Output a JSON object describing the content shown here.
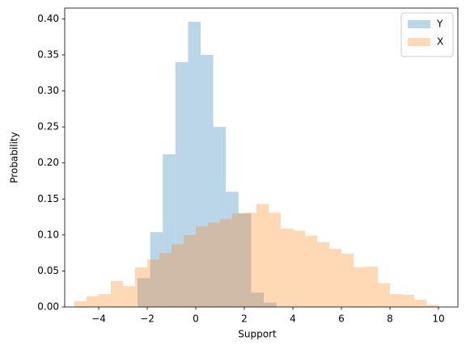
{
  "chart_data": {
    "type": "histogram",
    "x_label": "Support",
    "y_label": "Probability",
    "xlim": [
      -5.4,
      10.8
    ],
    "ylim": [
      0,
      0.415
    ],
    "xticks": [
      {
        "value": -4,
        "label": "−4"
      },
      {
        "value": -2,
        "label": "−2"
      },
      0,
      2,
      4,
      6,
      8,
      10
    ],
    "yticks": [
      {
        "value": 0,
        "label": "0.00"
      },
      {
        "value": 0.05,
        "label": "0.05"
      },
      {
        "value": 0.1,
        "label": "0.10"
      },
      {
        "value": 0.15,
        "label": "0.15"
      },
      {
        "value": 0.2,
        "label": "0.20"
      },
      {
        "value": 0.25,
        "label": "0.25"
      },
      {
        "value": 0.3,
        "label": "0.30"
      },
      {
        "value": 0.35,
        "label": "0.35"
      },
      {
        "value": 0.4,
        "label": "0.40"
      }
    ],
    "legend": "upper right",
    "series": [
      {
        "name": "Y",
        "color": "#1f77b4",
        "bins": [
          -2.4,
          -1.88,
          -1.36,
          -0.84,
          -0.32,
          0.2,
          0.72,
          1.24,
          1.76,
          2.28,
          2.8,
          3.32
        ],
        "values": [
          0.04,
          0.104,
          0.212,
          0.34,
          0.396,
          0.35,
          0.25,
          0.16,
          0.13,
          0.02,
          0.006
        ]
      },
      {
        "name": "X",
        "color": "#ff7f0e",
        "bins": [
          -5,
          -4.5,
          -4,
          -3.5,
          -3,
          -2.5,
          -2,
          -1.5,
          -1,
          -0.5,
          0,
          0.5,
          1,
          1.5,
          2,
          2.5,
          3,
          3.5,
          4,
          4.5,
          5,
          5.5,
          6,
          6.5,
          7,
          7.5,
          8,
          8.5,
          9,
          9.5,
          10
        ],
        "values": [
          0.008,
          0.015,
          0.018,
          0.036,
          0.029,
          0.055,
          0.066,
          0.075,
          0.087,
          0.1,
          0.112,
          0.117,
          0.122,
          0.13,
          0.131,
          0.143,
          0.131,
          0.109,
          0.106,
          0.099,
          0.09,
          0.081,
          0.074,
          0.055,
          0.056,
          0.033,
          0.018,
          0.017,
          0.01,
          0.003
        ]
      }
    ]
  }
}
